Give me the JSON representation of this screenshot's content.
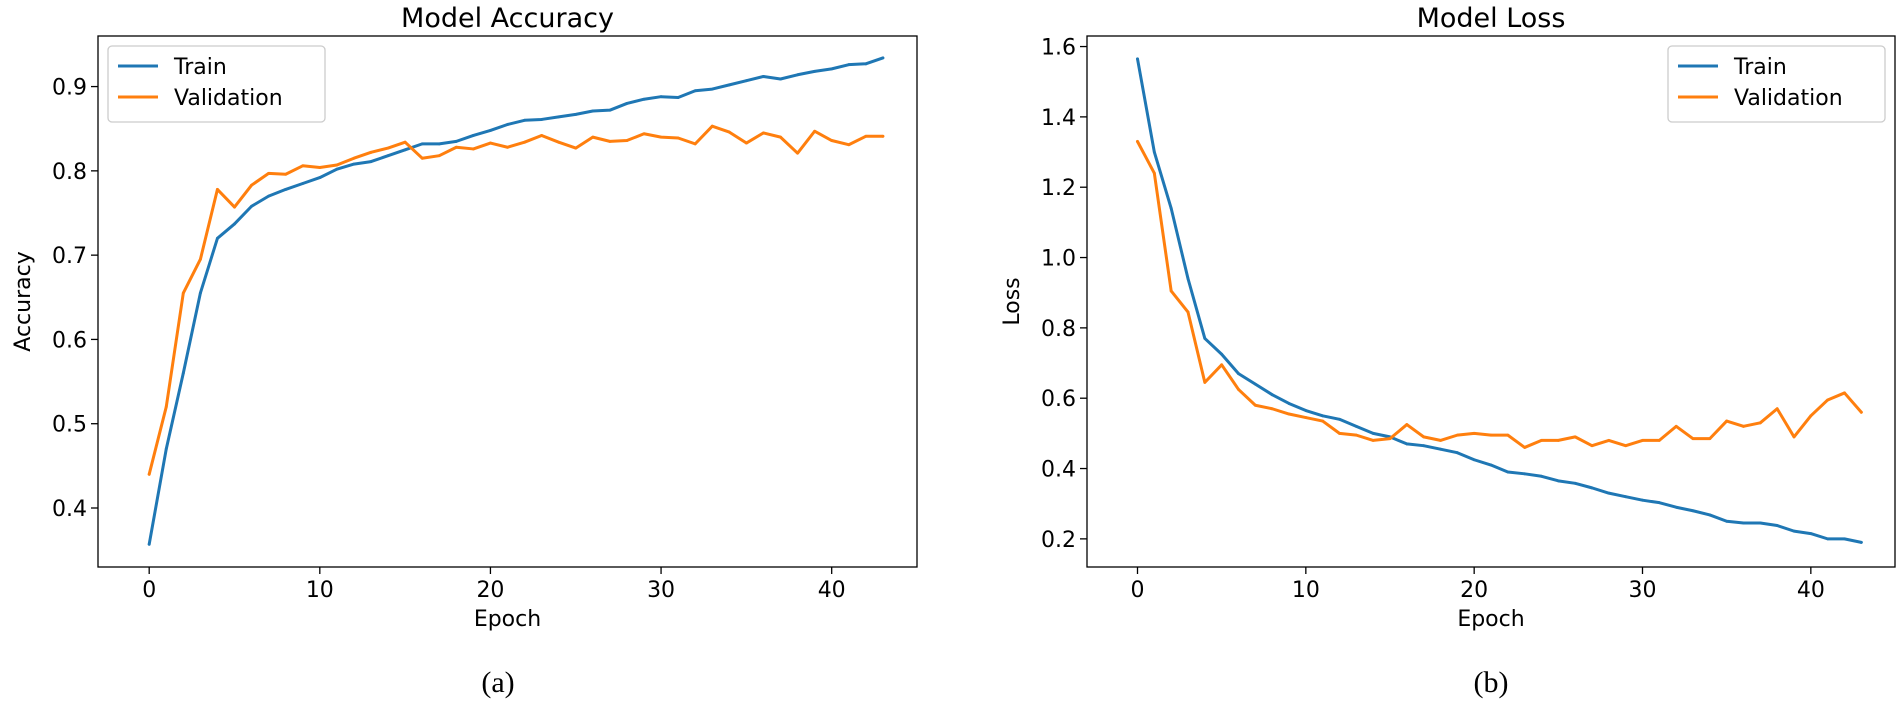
{
  "chart_data": [
    {
      "type": "line",
      "title": "Model Accuracy",
      "xlabel": "Epoch",
      "ylabel": "Accuracy",
      "caption": "(a)",
      "xlim": [
        -3,
        45
      ],
      "ylim": [
        0.33,
        0.96
      ],
      "xticks": [
        0,
        10,
        20,
        30,
        40
      ],
      "yticks": [
        0.4,
        0.5,
        0.6,
        0.7,
        0.8,
        0.9
      ],
      "ytick_decimals": 1,
      "legend_position": "upper-left",
      "series": [
        {
          "name": "Train",
          "color": "#1f77b4",
          "x": [
            0,
            1,
            2,
            3,
            4,
            5,
            6,
            7,
            8,
            9,
            10,
            11,
            12,
            13,
            14,
            15,
            16,
            17,
            18,
            19,
            20,
            21,
            22,
            23,
            24,
            25,
            26,
            27,
            28,
            29,
            30,
            31,
            32,
            33,
            34,
            35,
            36,
            37,
            38,
            39,
            40,
            41,
            42,
            43
          ],
          "values": [
            0.357,
            0.47,
            0.56,
            0.655,
            0.72,
            0.737,
            0.758,
            0.77,
            0.778,
            0.785,
            0.792,
            0.802,
            0.808,
            0.811,
            0.818,
            0.825,
            0.832,
            0.832,
            0.835,
            0.842,
            0.848,
            0.855,
            0.86,
            0.861,
            0.864,
            0.867,
            0.871,
            0.872,
            0.88,
            0.885,
            0.888,
            0.887,
            0.895,
            0.897,
            0.902,
            0.907,
            0.912,
            0.909,
            0.914,
            0.918,
            0.921,
            0.926,
            0.927,
            0.934
          ]
        },
        {
          "name": "Validation",
          "color": "#ff7f0e",
          "x": [
            0,
            1,
            2,
            3,
            4,
            5,
            6,
            7,
            8,
            9,
            10,
            11,
            12,
            13,
            14,
            15,
            16,
            17,
            18,
            19,
            20,
            21,
            22,
            23,
            24,
            25,
            26,
            27,
            28,
            29,
            30,
            31,
            32,
            33,
            34,
            35,
            36,
            37,
            38,
            39,
            40,
            41,
            42,
            43
          ],
          "values": [
            0.44,
            0.52,
            0.655,
            0.695,
            0.778,
            0.757,
            0.783,
            0.797,
            0.796,
            0.806,
            0.804,
            0.807,
            0.815,
            0.822,
            0.827,
            0.834,
            0.815,
            0.818,
            0.828,
            0.826,
            0.833,
            0.828,
            0.834,
            0.842,
            0.834,
            0.827,
            0.84,
            0.835,
            0.836,
            0.844,
            0.84,
            0.839,
            0.832,
            0.853,
            0.846,
            0.833,
            0.845,
            0.84,
            0.821,
            0.847,
            0.836,
            0.831,
            0.841,
            0.841
          ]
        }
      ]
    },
    {
      "type": "line",
      "title": "Model Loss",
      "xlabel": "Epoch",
      "ylabel": "Loss",
      "caption": "(b)",
      "xlim": [
        -3,
        45
      ],
      "ylim": [
        0.12,
        1.63
      ],
      "xticks": [
        0,
        10,
        20,
        30,
        40
      ],
      "yticks": [
        0.2,
        0.4,
        0.6,
        0.8,
        1.0,
        1.2,
        1.4,
        1.6
      ],
      "ytick_decimals": 1,
      "legend_position": "upper-right",
      "series": [
        {
          "name": "Train",
          "color": "#1f77b4",
          "x": [
            0,
            1,
            2,
            3,
            4,
            5,
            6,
            7,
            8,
            9,
            10,
            11,
            12,
            13,
            14,
            15,
            16,
            17,
            18,
            19,
            20,
            21,
            22,
            23,
            24,
            25,
            26,
            27,
            28,
            29,
            30,
            31,
            32,
            33,
            34,
            35,
            36,
            37,
            38,
            39,
            40,
            41,
            42,
            43
          ],
          "values": [
            1.565,
            1.3,
            1.14,
            0.94,
            0.77,
            0.725,
            0.67,
            0.64,
            0.61,
            0.585,
            0.565,
            0.55,
            0.54,
            0.52,
            0.5,
            0.49,
            0.47,
            0.465,
            0.455,
            0.445,
            0.425,
            0.41,
            0.39,
            0.385,
            0.378,
            0.365,
            0.358,
            0.345,
            0.33,
            0.32,
            0.31,
            0.303,
            0.29,
            0.28,
            0.268,
            0.25,
            0.245,
            0.245,
            0.238,
            0.222,
            0.215,
            0.2,
            0.2,
            0.19
          ]
        },
        {
          "name": "Validation",
          "color": "#ff7f0e",
          "x": [
            0,
            1,
            2,
            3,
            4,
            5,
            6,
            7,
            8,
            9,
            10,
            11,
            12,
            13,
            14,
            15,
            16,
            17,
            18,
            19,
            20,
            21,
            22,
            23,
            24,
            25,
            26,
            27,
            28,
            29,
            30,
            31,
            32,
            33,
            34,
            35,
            36,
            37,
            38,
            39,
            40,
            41,
            42,
            43
          ],
          "values": [
            1.33,
            1.24,
            0.905,
            0.845,
            0.645,
            0.695,
            0.625,
            0.58,
            0.57,
            0.555,
            0.545,
            0.535,
            0.5,
            0.495,
            0.48,
            0.485,
            0.525,
            0.49,
            0.48,
            0.495,
            0.5,
            0.495,
            0.495,
            0.46,
            0.48,
            0.48,
            0.49,
            0.465,
            0.48,
            0.465,
            0.48,
            0.48,
            0.52,
            0.485,
            0.485,
            0.535,
            0.52,
            0.53,
            0.57,
            0.49,
            0.55,
            0.595,
            0.615,
            0.56
          ]
        }
      ]
    }
  ]
}
